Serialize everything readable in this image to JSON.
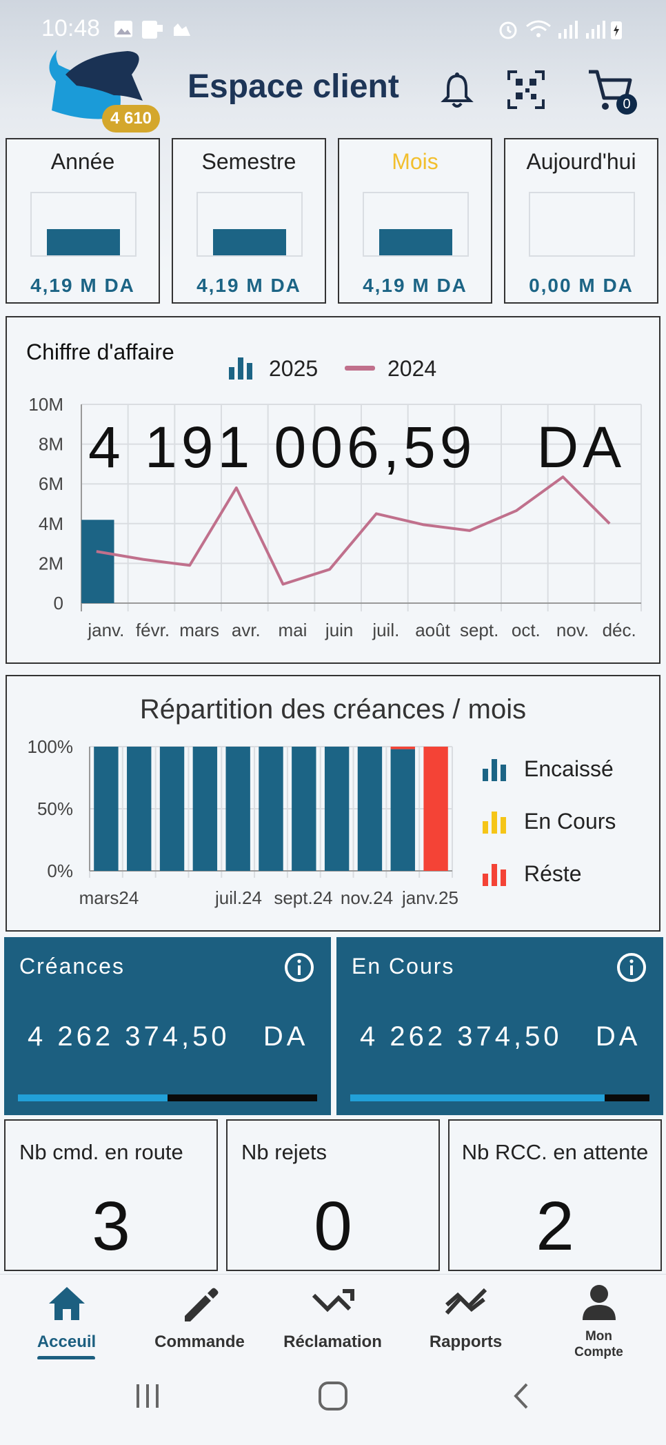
{
  "status_bar": {
    "time": "10:48"
  },
  "header": {
    "title": "Espace client",
    "logo_badge": "4 610",
    "cart_count": "0",
    "icons": [
      "bell-icon",
      "qr-scan-icon",
      "cart-icon"
    ]
  },
  "periods": [
    {
      "label": "Année",
      "value": "4,19 M DA",
      "level": 1.0,
      "active": false
    },
    {
      "label": "Semestre",
      "value": "4,19 M DA",
      "level": 1.0,
      "active": false
    },
    {
      "label": "Mois",
      "value": "4,19 M DA",
      "level": 1.0,
      "active": true
    },
    {
      "label": "Aujourd'hui",
      "value": "0,00 M DA",
      "level": 0.0,
      "active": false
    }
  ],
  "revenue_chart": {
    "title": "Chiffre d'affaire",
    "total": "4 191 006,59   DA",
    "legend": [
      {
        "name": "2025",
        "color": "#1c6485",
        "icon": "bar-legend-icon"
      },
      {
        "name": "2024",
        "color": "#c0708c",
        "icon": "line-legend-icon"
      }
    ],
    "y_ticks": [
      "10M",
      "8M",
      "6M",
      "4M",
      "2M",
      "0"
    ]
  },
  "receivables_chart": {
    "title": "Répartition des créances / mois",
    "y_ticks": [
      "100%",
      "50%",
      "0%"
    ],
    "x_ticks": [
      "mars24",
      "juil.24",
      "sept.24",
      "nov.24",
      "janv.25"
    ],
    "legend": [
      {
        "name": "Encaissé",
        "color": "#1c6485"
      },
      {
        "name": "En Cours",
        "color": "#f5c518"
      },
      {
        "name": "Réste",
        "color": "#f44336"
      }
    ]
  },
  "chart_data": [
    {
      "type": "bar",
      "title": "Chiffre d'affaire",
      "categories": [
        "janv.",
        "févr.",
        "mars",
        "avr.",
        "mai",
        "juin",
        "juil.",
        "août",
        "sept.",
        "oct.",
        "nov.",
        "déc."
      ],
      "ylim": [
        0,
        10000000
      ],
      "series": [
        {
          "name": "2025",
          "type": "bar",
          "values": [
            4191006.59,
            null,
            null,
            null,
            null,
            null,
            null,
            null,
            null,
            null,
            null,
            null
          ]
        },
        {
          "name": "2024",
          "type": "line",
          "values": [
            2600000,
            2200000,
            1900000,
            5800000,
            950000,
            1700000,
            4500000,
            3950000,
            3650000,
            4650000,
            6350000,
            4000000
          ]
        }
      ],
      "grid": true,
      "legend": "top"
    },
    {
      "type": "bar",
      "title": "Répartition des créances / mois",
      "categories": [
        "mars24",
        "",
        "",
        "",
        "juil.24",
        "",
        "sept.24",
        "",
        "nov.24",
        "",
        "janv.25"
      ],
      "ylim": [
        0,
        100
      ],
      "stacked": true,
      "series": [
        {
          "name": "Encaissé",
          "values": [
            100,
            100,
            100,
            100,
            100,
            100,
            100,
            100,
            100,
            98,
            0
          ]
        },
        {
          "name": "En Cours",
          "values": [
            0,
            0,
            0,
            0,
            0,
            0,
            0,
            0,
            0,
            0,
            0
          ]
        },
        {
          "name": "Réste",
          "values": [
            0,
            0,
            0,
            0,
            0,
            0,
            0,
            0,
            0,
            2,
            100
          ]
        }
      ],
      "grid": true,
      "legend": "right"
    }
  ],
  "summary_cards": [
    {
      "title": "Créances",
      "value": "4 262 374,50   DA",
      "progress": 0.5
    },
    {
      "title": "En Cours",
      "value": "4 262 374,50   DA",
      "progress": 0.85
    }
  ],
  "stats": [
    {
      "label": "Nb cmd. en route",
      "value": "3"
    },
    {
      "label": "Nb rejets",
      "value": "0"
    },
    {
      "label": "Nb RCC. en attente",
      "value": "2"
    }
  ],
  "bottom_nav": [
    {
      "label": "Acceuil",
      "icon": "home-icon",
      "active": true
    },
    {
      "label": "Commande",
      "icon": "pencil-icon",
      "active": false
    },
    {
      "label": "Réclamation",
      "icon": "trend-arrow-icon",
      "active": false
    },
    {
      "label": "Rapports",
      "icon": "chart-trend-icon",
      "active": false
    },
    {
      "label": "Mon Compte",
      "label_line1": "Mon",
      "label_line2": "Compte",
      "icon": "account-icon",
      "active": false
    }
  ]
}
